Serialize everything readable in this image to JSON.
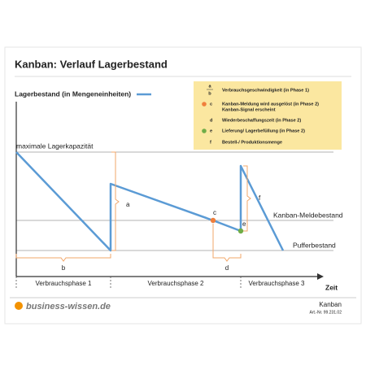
{
  "header": {
    "title": "Kanban: Verlauf Lagerbestand"
  },
  "y_axis_label": "Lagerbestand (in Mengeneinheiten)",
  "x_axis_label": "Zeit",
  "levels": {
    "max": "maximale Lagerkapazität",
    "reorder": "Kanban-Meldebestand",
    "buffer": "Pufferbestand"
  },
  "markers": {
    "a": "a",
    "b": "b",
    "c": "c",
    "d": "d",
    "e": "e",
    "f": "f"
  },
  "phases": [
    "Verbrauchsphase 1",
    "Verbrauchsphase 2",
    "Verbrauchsphase 3"
  ],
  "legend": [
    {
      "key_top": "a",
      "key_bottom": "b",
      "text": "Verbrauchsgeschwindigkeit (in Phase 1)"
    },
    {
      "key": "c",
      "text": "Kanban-Meldung wird ausgelöst (in Phase 2)",
      "text2": "Kanban-Signal erscheint"
    },
    {
      "key": "d",
      "text": "Wiederbeschaffungszeit (in Phase 2)"
    },
    {
      "key": "e",
      "text": "Lieferung/ Lagerbefüllung (in Phase 2)"
    },
    {
      "key": "f",
      "text": "Bestell-/ Produktionsmenge"
    }
  ],
  "footer": {
    "brand": "business-wissen.de",
    "name": "Kanban",
    "article": "Art.-Nr. 99.231.02"
  }
}
